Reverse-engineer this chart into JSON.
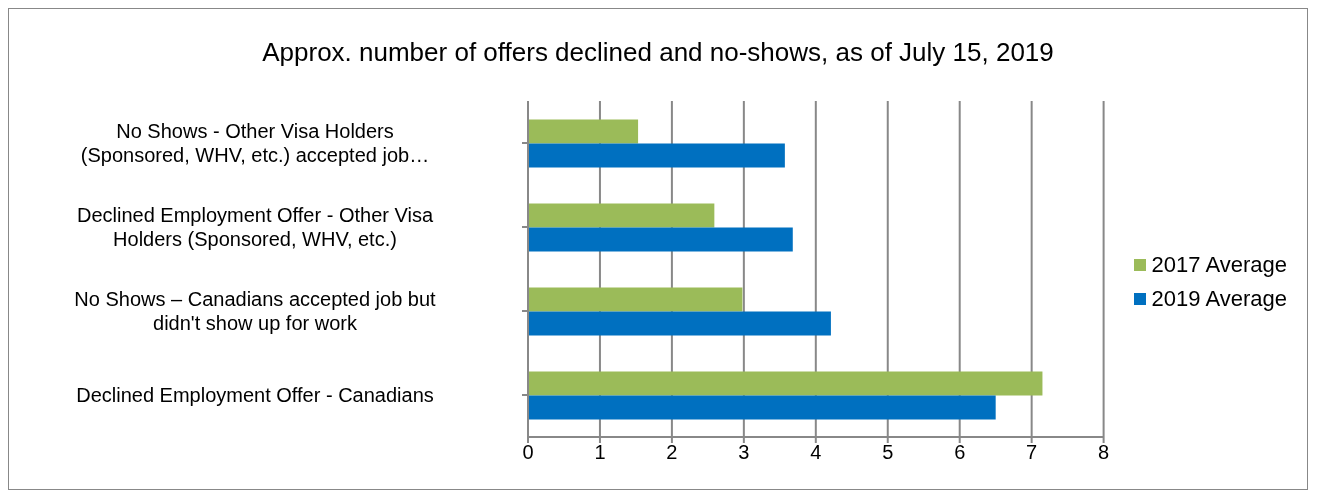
{
  "chart_data": {
    "type": "bar",
    "orientation": "horizontal",
    "title": "Approx. number of offers declined and no-shows, as of July 15, 2019",
    "categories": [
      "No Shows - Other Visa Holders (Sponsored, WHV, etc.) accepted job…",
      "Declined Employment Offer - Other Visa Holders (Sponsored, WHV, etc.)",
      "No Shows – Canadians accepted job but didn't show up for work",
      "Declined Employment Offer - Canadians"
    ],
    "series": [
      {
        "name": "2017 Average",
        "color": "#9bbb59",
        "values": [
          1.53,
          2.59,
          2.98,
          7.15
        ]
      },
      {
        "name": "2019 Average",
        "color": "#0070c0",
        "values": [
          3.57,
          3.68,
          4.21,
          6.5
        ]
      }
    ],
    "xlim": [
      0,
      8
    ],
    "xticks": [
      0,
      1,
      2,
      3,
      4,
      5,
      6,
      7,
      8
    ],
    "grid": "x",
    "legend": "right"
  }
}
